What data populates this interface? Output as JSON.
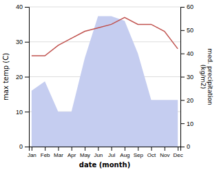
{
  "chart_data": {
    "type": "line",
    "categories": [
      "Jan",
      "Feb",
      "Mar",
      "Apr",
      "May",
      "Jun",
      "Jul",
      "Aug",
      "Sep",
      "Oct",
      "Nov",
      "Dec"
    ],
    "xlabel": "date (month)",
    "ylabel": "max temp (C)",
    "y2label": "med. precipitation\n(kg/m2)",
    "series": [
      {
        "type": "area",
        "axis": "y2",
        "color": "#c5cdf0",
        "values": [
          24,
          28,
          15,
          15,
          38,
          56,
          56,
          54,
          40,
          20,
          20,
          20
        ]
      },
      {
        "type": "line",
        "color": "#c0514d",
        "values": [
          26,
          26,
          29,
          31,
          33,
          34,
          35,
          37,
          35,
          35,
          33,
          28
        ]
      }
    ],
    "ylim": [
      0,
      40
    ],
    "yticks": [
      0,
      10,
      20,
      30,
      40
    ],
    "y2lim": [
      0,
      60
    ],
    "y2ticks": [
      0,
      10,
      20,
      30,
      40,
      50,
      60
    ],
    "grid": true
  }
}
